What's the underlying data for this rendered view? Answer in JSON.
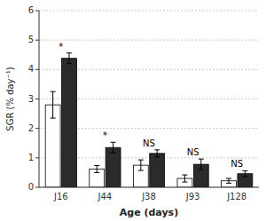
{
  "chart_data": {
    "type": "bar",
    "categories": [
      "J16",
      "J44",
      "J38",
      "J93",
      "J128"
    ],
    "series": [
      {
        "color": "#ffffff",
        "values": [
          2.8,
          0.62,
          0.75,
          0.3,
          0.22
        ],
        "errors": [
          0.45,
          0.12,
          0.18,
          0.12,
          0.08
        ]
      },
      {
        "color": "#2b2b2b",
        "values": [
          4.38,
          1.35,
          1.15,
          0.78,
          0.46
        ],
        "errors": [
          0.18,
          0.18,
          0.12,
          0.18,
          0.1
        ]
      }
    ],
    "annotations": [
      {
        "text": "*",
        "category": "J16"
      },
      {
        "text": "*",
        "category": "J44"
      },
      {
        "text": "NS",
        "category": "J38"
      },
      {
        "text": "NS",
        "category": "J93"
      },
      {
        "text": "NS",
        "category": "J128"
      }
    ],
    "xlabel": "Age (days)",
    "ylabel": "SGR (% day⁻¹)",
    "ylim": [
      0,
      6
    ],
    "yticks": [
      0,
      1,
      2,
      3,
      4,
      5,
      6
    ],
    "grid": true
  }
}
